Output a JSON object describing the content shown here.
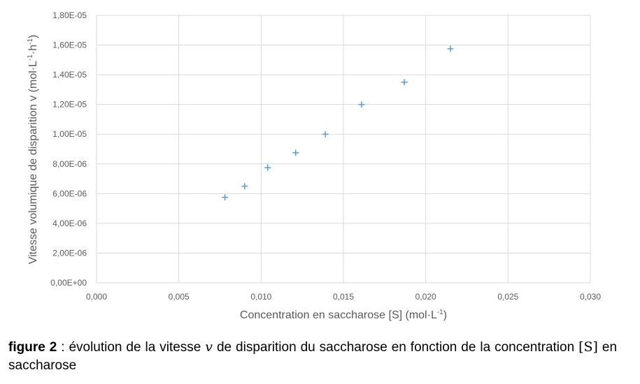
{
  "chart_data": {
    "type": "scatter",
    "xlabel": "Concentration en saccharose [S] (mol·L",
    "xlabel_sup": "-1",
    "xlabel_end": ")",
    "ylabel": "Vitesse volumique de disparition v (mol·L",
    "ylabel_sup1": "-1",
    "ylabel_mid": "·h",
    "ylabel_sup2": "-1",
    "ylabel_end": ")",
    "xlim": [
      0,
      0.03
    ],
    "ylim": [
      0,
      1.8e-05
    ],
    "x_ticks": [
      0,
      0.005,
      0.01,
      0.015,
      0.02,
      0.025,
      0.03
    ],
    "x_tick_labels": [
      "0,000",
      "0,005",
      "0,010",
      "0,015",
      "0,020",
      "0,025",
      "0,030"
    ],
    "y_ticks": [
      0,
      2e-06,
      4e-06,
      6e-06,
      8e-06,
      1e-05,
      1.2e-05,
      1.4e-05,
      1.6e-05,
      1.8e-05
    ],
    "y_tick_labels": [
      "0,00E+00",
      "2,00E-06",
      "4,00E-06",
      "6,00E-06",
      "8,00E-06",
      "1,00E-05",
      "1,20E-05",
      "1,40E-05",
      "1,60E-05",
      "1,80E-05"
    ],
    "grid": true,
    "marker": "plus",
    "color": "#5b9bd5",
    "series": [
      {
        "x": [
          0.0078,
          0.009,
          0.0104,
          0.0121,
          0.0139,
          0.0161,
          0.0187,
          0.0215
        ],
        "y": [
          5.75e-06,
          6.5e-06,
          7.75e-06,
          8.75e-06,
          1e-05,
          1.2e-05,
          1.35e-05,
          1.575e-05
        ]
      }
    ]
  },
  "caption": {
    "label": "figure 2",
    "sep": " : ",
    "text1": "évolution de la vitesse ",
    "var_v": "v",
    "text2": " de disparition du saccharose en fonction de la concentration ",
    "var_s": "[S]",
    "text3": " en saccharose"
  }
}
